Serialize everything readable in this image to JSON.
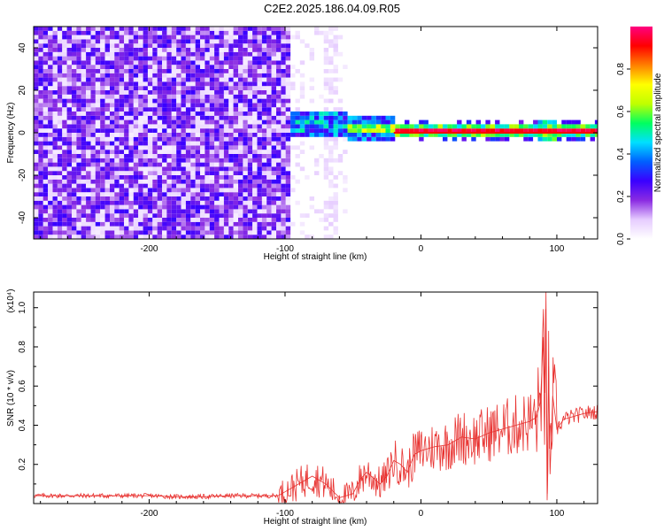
{
  "title": "C2E2.2025.186.04.09.R05",
  "chart_data": [
    {
      "type": "heatmap",
      "title": "C2E2.2025.186.04.09.R05",
      "xlabel": "Height of straight line (km)",
      "ylabel": "Frequency (Hz)",
      "xlim": [
        -285,
        130
      ],
      "ylim": [
        -50,
        50
      ],
      "x_ticks": [
        -200,
        -100,
        0,
        100
      ],
      "x_tick_labels": [
        "-200",
        "-100",
        "0",
        "100"
      ],
      "y_ticks": [
        -40,
        -20,
        0,
        20,
        40
      ],
      "y_tick_labels": [
        "-40",
        "-20",
        "0",
        "20",
        "40"
      ],
      "colorbar": {
        "label": "Normalized spectral amplitude",
        "range": [
          0,
          1
        ],
        "ticks": [
          0.0,
          0.2,
          0.4,
          0.6,
          0.8
        ],
        "tick_labels": [
          "0.0",
          "0.2",
          "0.4",
          "0.6",
          "0.8"
        ],
        "colormap": [
          "#ffffff",
          "#e6ccff",
          "#8a2be2",
          "#3a00ff",
          "#0060ff",
          "#00e0ff",
          "#00ff60",
          "#c0ff00",
          "#ffff00",
          "#ff8000",
          "#ff0000",
          "#ff0080"
        ]
      },
      "regions": [
        {
          "x": [
            -285,
            -97
          ],
          "freq": [
            -50,
            50
          ],
          "level": 0.2,
          "description": "broadband noise"
        },
        {
          "x": [
            -97,
            -60
          ],
          "freq": [
            -3,
            10
          ],
          "level": 0.35
        },
        {
          "x": [
            -60,
            -20
          ],
          "freq": [
            -6,
            8
          ],
          "level": 0.5
        },
        {
          "x": [
            -20,
            130
          ],
          "freq": [
            -2,
            2
          ],
          "level": 0.95
        }
      ]
    },
    {
      "type": "line",
      "title": "",
      "xlabel": "Height of straight line (km)",
      "ylabel": "SNR (10 * v/v)",
      "y_multiplier": "(x10⁴)",
      "xlim": [
        -285,
        130
      ],
      "ylim": [
        0,
        1.08
      ],
      "x_ticks": [
        -200,
        -100,
        0,
        100
      ],
      "x_tick_labels": [
        "-200",
        "-100",
        "0",
        "100"
      ],
      "y_ticks": [
        0.2,
        0.4,
        0.6,
        0.8,
        1.0
      ],
      "y_tick_labels": [
        "0.2",
        "0.4",
        "0.6",
        "0.8",
        "1.0"
      ],
      "series": [
        {
          "color": "#e8312f",
          "x": [
            -285,
            -260,
            -240,
            -220,
            -200,
            -180,
            -160,
            -140,
            -120,
            -105,
            -100,
            -90,
            -80,
            -70,
            -60,
            -50,
            -45,
            -40,
            -35,
            -30,
            -25,
            -20,
            -15,
            -10,
            -5,
            0,
            10,
            20,
            30,
            40,
            50,
            60,
            70,
            80,
            85,
            88,
            90,
            91,
            92,
            93,
            94,
            95,
            97,
            100,
            105,
            110,
            120,
            130
          ],
          "y": [
            0.04,
            0.04,
            0.04,
            0.04,
            0.04,
            0.035,
            0.035,
            0.04,
            0.04,
            0.04,
            0.06,
            0.1,
            0.14,
            0.1,
            0.03,
            0.05,
            0.12,
            0.16,
            0.13,
            0.1,
            0.14,
            0.22,
            0.2,
            0.16,
            0.25,
            0.27,
            0.29,
            0.3,
            0.34,
            0.33,
            0.36,
            0.38,
            0.4,
            0.42,
            0.44,
            0.52,
            0.85,
            0.3,
            1.08,
            0.05,
            0.7,
            0.15,
            0.55,
            0.38,
            0.43,
            0.44,
            0.46,
            0.47
          ]
        }
      ]
    }
  ]
}
